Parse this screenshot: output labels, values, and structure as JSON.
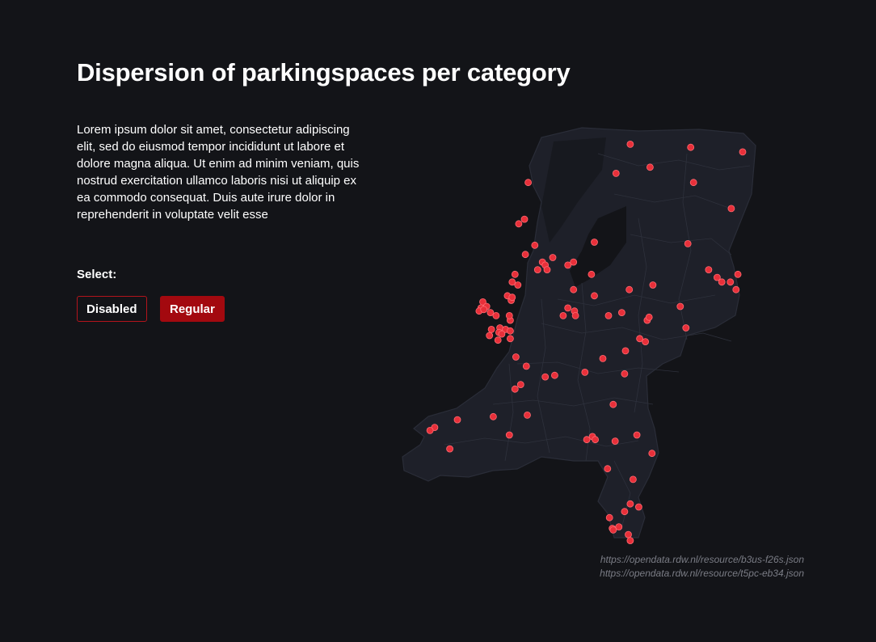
{
  "header": {
    "title": "Dispersion of parkingspaces per category"
  },
  "intro": {
    "text": "Lorem ipsum dolor sit amet, consectetur adipiscing elit, sed do eiusmod tempor incididunt ut labore et dolore magna aliqua. Ut enim ad minim veniam, quis nostrud exercitation ullamco laboris nisi ut aliquip ex ea commodo consequat. Duis aute irure dolor in reprehenderit in voluptate velit esse"
  },
  "filter": {
    "label": "Select:",
    "options": [
      "Disabled",
      "Regular"
    ],
    "selected": "Regular"
  },
  "map": {
    "region": "Netherlands",
    "land_color": "#1e2029",
    "border_color": "#2a2d38",
    "marker_color": "#e8303a",
    "marker_stroke": "#ff6b72",
    "locations": [
      {
        "lat": 53.35,
        "lon": 6.52
      },
      {
        "lat": 53.37,
        "lon": 5.88
      },
      {
        "lat": 53.32,
        "lon": 7.07
      },
      {
        "lat": 53.22,
        "lon": 6.09
      },
      {
        "lat": 53.18,
        "lon": 5.73
      },
      {
        "lat": 53.12,
        "lon": 6.55
      },
      {
        "lat": 52.95,
        "lon": 6.95
      },
      {
        "lat": 53.12,
        "lon": 4.8
      },
      {
        "lat": 52.88,
        "lon": 4.76
      },
      {
        "lat": 52.85,
        "lon": 4.7
      },
      {
        "lat": 52.71,
        "lon": 4.87
      },
      {
        "lat": 52.72,
        "lon": 6.49
      },
      {
        "lat": 52.73,
        "lon": 5.5
      },
      {
        "lat": 52.65,
        "lon": 4.77
      },
      {
        "lat": 52.63,
        "lon": 5.06
      },
      {
        "lat": 52.6,
        "lon": 4.95
      },
      {
        "lat": 52.58,
        "lon": 4.98
      },
      {
        "lat": 52.55,
        "lon": 5.0
      },
      {
        "lat": 52.55,
        "lon": 4.9
      },
      {
        "lat": 52.6,
        "lon": 5.28
      },
      {
        "lat": 52.58,
        "lon": 5.22
      },
      {
        "lat": 52.52,
        "lon": 5.47
      },
      {
        "lat": 52.55,
        "lon": 6.71
      },
      {
        "lat": 52.5,
        "lon": 6.8
      },
      {
        "lat": 52.52,
        "lon": 7.02
      },
      {
        "lat": 52.47,
        "lon": 6.85
      },
      {
        "lat": 52.47,
        "lon": 6.94
      },
      {
        "lat": 52.42,
        "lon": 7.0
      },
      {
        "lat": 52.45,
        "lon": 6.12
      },
      {
        "lat": 52.42,
        "lon": 5.87
      },
      {
        "lat": 52.42,
        "lon": 5.28
      },
      {
        "lat": 52.45,
        "lon": 4.69
      },
      {
        "lat": 52.47,
        "lon": 4.63
      },
      {
        "lat": 52.52,
        "lon": 4.66
      },
      {
        "lat": 52.38,
        "lon": 4.58
      },
      {
        "lat": 52.35,
        "lon": 4.62
      },
      {
        "lat": 52.38,
        "lon": 5.5
      },
      {
        "lat": 52.37,
        "lon": 4.63
      },
      {
        "lat": 52.34,
        "lon": 4.32
      },
      {
        "lat": 52.3,
        "lon": 4.3
      },
      {
        "lat": 52.31,
        "lon": 4.36
      },
      {
        "lat": 52.28,
        "lon": 4.28
      },
      {
        "lat": 52.29,
        "lon": 4.33
      },
      {
        "lat": 52.27,
        "lon": 4.4
      },
      {
        "lat": 52.25,
        "lon": 4.46
      },
      {
        "lat": 52.22,
        "lon": 4.61
      },
      {
        "lat": 52.25,
        "lon": 4.6
      },
      {
        "lat": 52.3,
        "lon": 5.22
      },
      {
        "lat": 52.28,
        "lon": 5.29
      },
      {
        "lat": 52.25,
        "lon": 5.3
      },
      {
        "lat": 52.25,
        "lon": 5.17
      },
      {
        "lat": 52.25,
        "lon": 5.65
      },
      {
        "lat": 52.27,
        "lon": 5.79
      },
      {
        "lat": 52.22,
        "lon": 6.06
      },
      {
        "lat": 52.24,
        "lon": 6.08
      },
      {
        "lat": 52.31,
        "lon": 6.41
      },
      {
        "lat": 52.17,
        "lon": 6.47
      },
      {
        "lat": 52.17,
        "lon": 4.5
      },
      {
        "lat": 52.16,
        "lon": 4.41
      },
      {
        "lat": 52.16,
        "lon": 4.56
      },
      {
        "lat": 52.14,
        "lon": 4.49
      },
      {
        "lat": 52.13,
        "lon": 4.52
      },
      {
        "lat": 52.15,
        "lon": 4.61
      },
      {
        "lat": 52.1,
        "lon": 4.61
      },
      {
        "lat": 52.12,
        "lon": 4.39
      },
      {
        "lat": 52.09,
        "lon": 4.48
      },
      {
        "lat": 52.1,
        "lon": 5.98
      },
      {
        "lat": 52.08,
        "lon": 6.04
      },
      {
        "lat": 52.02,
        "lon": 5.83
      },
      {
        "lat": 51.97,
        "lon": 5.59
      },
      {
        "lat": 51.98,
        "lon": 4.67
      },
      {
        "lat": 51.92,
        "lon": 4.78
      },
      {
        "lat": 51.88,
        "lon": 5.4
      },
      {
        "lat": 51.85,
        "lon": 4.98
      },
      {
        "lat": 51.86,
        "lon": 5.08
      },
      {
        "lat": 51.87,
        "lon": 5.82
      },
      {
        "lat": 51.8,
        "lon": 4.72
      },
      {
        "lat": 51.77,
        "lon": 4.66
      },
      {
        "lat": 51.67,
        "lon": 5.7
      },
      {
        "lat": 51.6,
        "lon": 4.79
      },
      {
        "lat": 51.59,
        "lon": 4.43
      },
      {
        "lat": 51.57,
        "lon": 4.05
      },
      {
        "lat": 51.52,
        "lon": 3.81
      },
      {
        "lat": 51.5,
        "lon": 3.76
      },
      {
        "lat": 51.47,
        "lon": 4.6
      },
      {
        "lat": 51.46,
        "lon": 5.48
      },
      {
        "lat": 51.44,
        "lon": 5.42
      },
      {
        "lat": 51.44,
        "lon": 5.51
      },
      {
        "lat": 51.43,
        "lon": 5.72
      },
      {
        "lat": 51.47,
        "lon": 5.95
      },
      {
        "lat": 51.35,
        "lon": 6.11
      },
      {
        "lat": 51.38,
        "lon": 3.97
      },
      {
        "lat": 51.25,
        "lon": 5.64
      },
      {
        "lat": 51.18,
        "lon": 5.91
      },
      {
        "lat": 51.02,
        "lon": 5.88
      },
      {
        "lat": 50.97,
        "lon": 5.82
      },
      {
        "lat": 50.93,
        "lon": 5.66
      },
      {
        "lat": 50.87,
        "lon": 5.76
      },
      {
        "lat": 50.86,
        "lon": 5.69
      },
      {
        "lat": 50.85,
        "lon": 5.7
      },
      {
        "lat": 50.82,
        "lon": 5.86
      },
      {
        "lat": 51.0,
        "lon": 5.97
      },
      {
        "lat": 50.78,
        "lon": 5.88
      }
    ]
  },
  "sources": [
    "https://opendata.rdw.nl/resource/b3us-f26s.json",
    "https://opendata.rdw.nl/resource/t5pc-eb34.json"
  ]
}
